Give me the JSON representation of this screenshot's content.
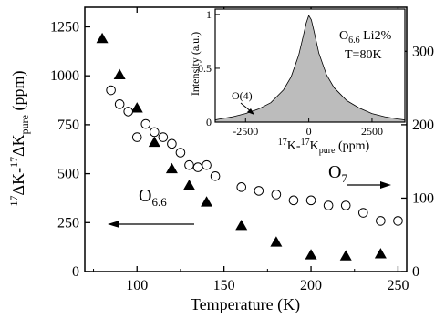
{
  "chart_data": [
    {
      "type": "scatter",
      "xlabel": "Temperature (K)",
      "ylabel_left": {
        "main": "ΔK-",
        "sup1": "17",
        "sup2": "17",
        "mid": "ΔK",
        "sub": "pure",
        "tail": " (ppm)"
      },
      "xlim": [
        70,
        255
      ],
      "ylim_left": [
        0,
        1350
      ],
      "ylim_right": [
        0,
        360
      ],
      "x_ticks": [
        100,
        150,
        200,
        250
      ],
      "y_ticks_left": [
        0,
        250,
        500,
        750,
        1000,
        1250
      ],
      "y_ticks_right": [
        0,
        100,
        200,
        300
      ],
      "annotations": {
        "o66": {
          "base": "O",
          "sub": "6.6"
        },
        "o7": {
          "base": "O",
          "sub": "7"
        }
      },
      "series": [
        {
          "marker": "filled-triangle",
          "axis": "left",
          "points": [
            [
              80,
              1190
            ],
            [
              90,
              1005
            ],
            [
              100,
              835
            ],
            [
              110,
              660
            ],
            [
              120,
              525
            ],
            [
              130,
              440
            ],
            [
              140,
              355
            ],
            [
              160,
              235
            ],
            [
              180,
              150
            ],
            [
              200,
              85
            ],
            [
              220,
              80
            ],
            [
              240,
              90
            ]
          ]
        },
        {
          "marker": "open-circle",
          "axis": "right",
          "points": [
            [
              85,
              247
            ],
            [
              90,
              228
            ],
            [
              95,
              218
            ],
            [
              100,
              183
            ],
            [
              105,
              201
            ],
            [
              110,
              190
            ],
            [
              115,
              183
            ],
            [
              120,
              174
            ],
            [
              125,
              162
            ],
            [
              130,
              145
            ],
            [
              135,
              142
            ],
            [
              140,
              145
            ],
            [
              145,
              130
            ],
            [
              160,
              115
            ],
            [
              170,
              110
            ],
            [
              180,
              105
            ],
            [
              190,
              97
            ],
            [
              200,
              97
            ],
            [
              210,
              90
            ],
            [
              220,
              90
            ],
            [
              230,
              80
            ],
            [
              240,
              69
            ],
            [
              250,
              69
            ]
          ]
        }
      ]
    },
    {
      "type": "area",
      "ylabel": "Intensity (a.u.)",
      "xlabel": {
        "sup1": "17",
        "k1": "K-",
        "sup2": "17",
        "k2": "K",
        "sub": "pure",
        "tail": " (ppm)"
      },
      "xlim": [
        -3700,
        3800
      ],
      "ylim": [
        0,
        1.05
      ],
      "x_ticks": [
        -2500,
        0,
        2500
      ],
      "y_ticks": [
        0,
        0.5,
        1
      ],
      "x_tick_labels": [
        "-2500",
        "0",
        "2500"
      ],
      "y_tick_labels": [
        "0",
        "0.5",
        "1"
      ],
      "legend": {
        "line1_base": "O",
        "line1_sub": "6.6",
        "line1_tail": " Li2%",
        "line2": "T=80K"
      },
      "arrow_label": "O(4)",
      "profile": [
        [
          -3700,
          0.02
        ],
        [
          -3500,
          0.03
        ],
        [
          -3000,
          0.05
        ],
        [
          -2500,
          0.08
        ],
        [
          -2000,
          0.12
        ],
        [
          -1500,
          0.18
        ],
        [
          -1000,
          0.3
        ],
        [
          -700,
          0.42
        ],
        [
          -400,
          0.62
        ],
        [
          -200,
          0.82
        ],
        [
          -100,
          0.92
        ],
        [
          0,
          0.99
        ],
        [
          100,
          0.95
        ],
        [
          200,
          0.85
        ],
        [
          400,
          0.64
        ],
        [
          700,
          0.44
        ],
        [
          1000,
          0.32
        ],
        [
          1500,
          0.2
        ],
        [
          2000,
          0.13
        ],
        [
          2500,
          0.08
        ],
        [
          3000,
          0.05
        ],
        [
          3500,
          0.03
        ],
        [
          3800,
          0.02
        ]
      ]
    }
  ]
}
